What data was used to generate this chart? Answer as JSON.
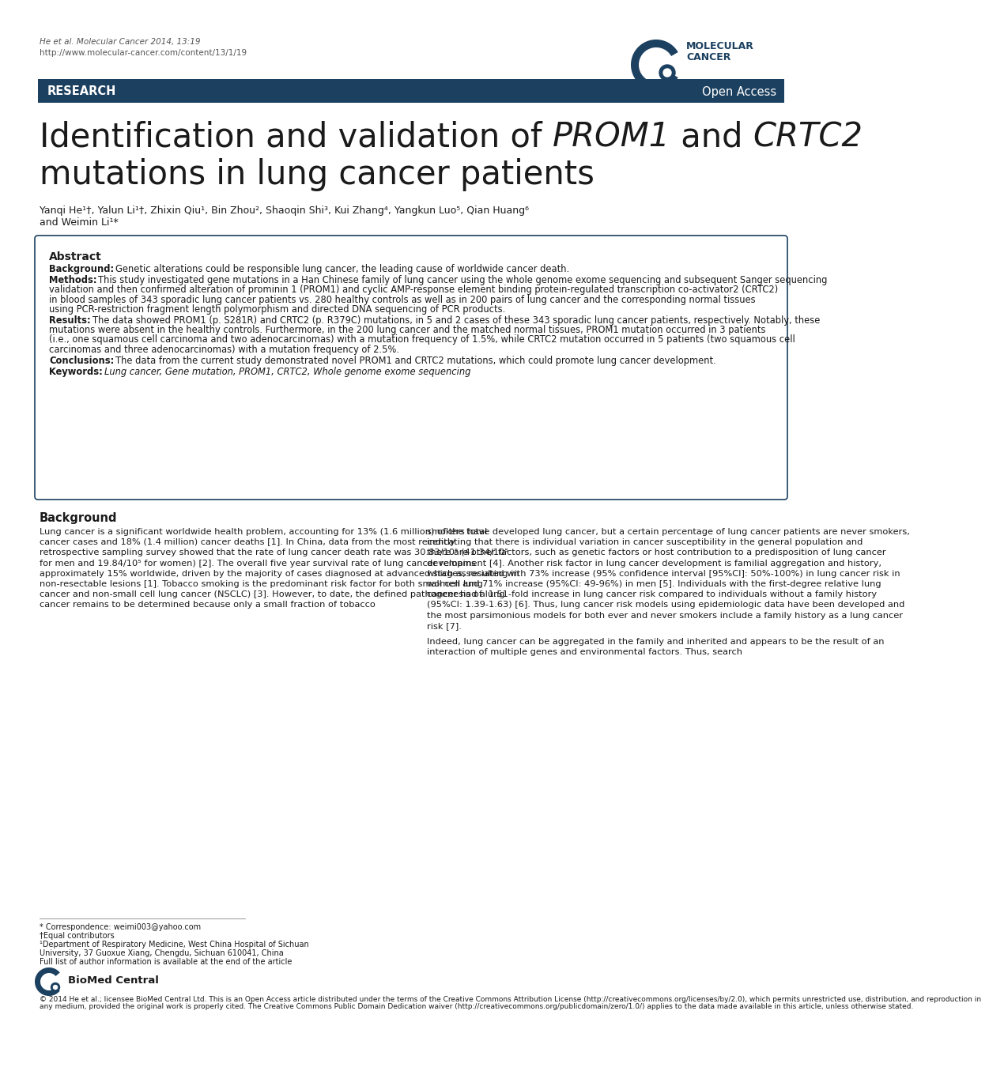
{
  "header_line1": "He et al. Molecular Cancer 2014, 13:19",
  "header_line2": "http://www.molecular-cancer.com/content/13/1/19",
  "research_label": "RESEARCH",
  "open_access_label": "Open Access",
  "title_normal1": "Identification and validation of ",
  "title_italic1": "PROM1",
  "title_normal2": " and ",
  "title_italic2": "CRTC2",
  "title_line2": "mutations in lung cancer patients",
  "authors_line1": "Yanqi He¹†, Yalun Li¹†, Zhixin Qiu¹, Bin Zhou², Shaoqin Shi³, Kui Zhang⁴, Yangkun Luo⁵, Qian Huang⁶",
  "authors_line2": "and Weimin Li¹*",
  "abstract_title": "Abstract",
  "bg_label": "Background:",
  "bg_text": "Genetic alterations could be responsible lung cancer, the leading cause of worldwide cancer death.",
  "methods_label": "Methods:",
  "methods_text": "This study investigated gene mutations in a Han Chinese family of lung cancer using the whole genome exome sequencing and subsequent Sanger sequencing validation and then confirmed alteration of prominin 1 (PROM1) and cyclic AMP-response element binding protein-regulated transcription co-activator2 (CRTC2) in blood samples of 343 sporadic lung cancer patients vs. 280 healthy controls as well as in 200 pairs of lung cancer and the corresponding normal tissues using PCR-restriction fragment length polymorphism and directed DNA sequencing of PCR products.",
  "results_label": "Results:",
  "results_text": "The data showed PROM1 (p. S281R) and CRTC2 (p. R379C) mutations, in 5 and 2 cases of these 343 sporadic lung cancer patients, respectively. Notably, these mutations were absent in the healthy controls. Furthermore, in the 200 lung cancer and the matched normal tissues, PROM1 mutation occurred in 3 patients (i.e., one squamous cell carcinoma and two adenocarcinomas) with a mutation frequency of 1.5%, while CRTC2 mutation occurred in 5 patients (two squamous cell carcinomas and three adenocarcinomas) with a mutation frequency of 2.5%.",
  "conclusions_label": "Conclusions:",
  "conclusions_text": "The data from the current study demonstrated novel PROM1 and CRTC2 mutations, which could promote lung cancer development.",
  "keywords_label": "Keywords:",
  "keywords_text": "Lung cancer, Gene mutation, PROM1, CRTC2, Whole genome exome sequencing",
  "bg_section_title": "Background",
  "col1_text": "Lung cancer is a significant worldwide health problem, accounting for 13% (1.6 million) of the total cancer cases and 18% (1.4 million) cancer deaths [1]. In China, data from the most recently retrospective sampling survey showed that the rate of lung cancer death rate was 30.83/10⁵ (41.34/10⁵ for men and 19.84/10⁵ for women) [2]. The overall five year survival rate of lung cancer remains approximately 15% worldwide, driven by the majority of cases diagnosed at advanced stages, resulting in non-resectable lesions [1]. Tobacco smoking is the predominant risk factor for both small cell lung cancer and non-small cell lung cancer (NSCLC) [3]. However, to date, the defined pathogenesis of lung cancer remains to be determined because only a small fraction of tobacco",
  "col2_text": "smokers have developed lung cancer, but a certain percentage of lung cancer patients are never smokers, indicating that there is individual variation in cancer susceptibility in the general population and there are other factors, such as genetic factors or host contribution to a predisposition of lung cancer development [4]. Another risk factor in lung cancer development is familial aggregation and history, which associated with 73% increase (95% confidence interval [95%CI]: 50%-100%) in lung cancer risk in women and 71% increase (95%CI: 49-96%) in men [5]. Individuals with the first-degree relative lung cancer had a 1.51-fold increase in lung cancer risk compared to individuals without a family history (95%CI: 1.39-1.63) [6]. Thus, lung cancer risk models using epidemiologic data have been developed and the most parsimonious models for both ever and never smokers include a family history as a lung cancer risk [7].\n\nIndeed, lung cancer can be aggregated in the family and inherited and appears to be the result of an interaction of multiple genes and environmental factors. Thus, search",
  "footer_corr": "* Correspondence: weimi003@yahoo.com",
  "footer_equal": "†Equal contributors",
  "footer_dept": "¹Department of Respiratory Medicine, West China Hospital of Sichuan",
  "footer_univ": "University, 37 Guoxue Xiang, Chengdu, Sichuan 610041, China",
  "footer_full": "Full list of author information is available at the end of the article",
  "bmc_copyright": "© 2014 He et al.; licensee BioMed Central Ltd. This is an Open Access article distributed under the terms of the Creative Commons Attribution License (http://creativecommons.org/licenses/by/2.0), which permits unrestricted use, distribution, and reproduction in any medium, provided the original work is properly cited. The Creative Commons Public Domain Dedication waiver (http://creativecommons.org/publicdomain/zero/1.0/) applies to the data made available in this article, unless otherwise stated.",
  "bar_color": "#1c4060",
  "bar_text_color": "#ffffff",
  "border_color": "#1c4060",
  "bg_color": "#ffffff",
  "text_color": "#1a1a1a",
  "gray_color": "#555555",
  "logo_blue": "#1c4060",
  "logo_light": "#4a7fb5"
}
